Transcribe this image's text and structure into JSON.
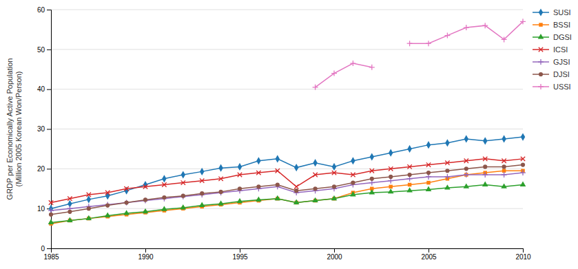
{
  "chart_data": {
    "type": "line",
    "ylabel": "GRDP per Economically Active Population\n(Million 2005 Korean Won/Person)",
    "x": [
      1985,
      1986,
      1987,
      1988,
      1989,
      1990,
      1991,
      1992,
      1993,
      1994,
      1995,
      1996,
      1997,
      1998,
      1999,
      2000,
      2001,
      2002,
      2003,
      2004,
      2005,
      2006,
      2007,
      2008,
      2009,
      2010
    ],
    "xlim": [
      1985,
      2010
    ],
    "xticks": [
      1985,
      1990,
      1995,
      2000,
      2005,
      2010
    ],
    "ylim": [
      0,
      60
    ],
    "yticks": [
      0,
      10,
      20,
      30,
      40,
      50,
      60
    ],
    "grid": true,
    "legend": "right",
    "series": [
      {
        "name": "SUSI",
        "marker": "diamond",
        "values": [
          10.0,
          11.2,
          12.3,
          13.2,
          14.5,
          16.0,
          17.5,
          18.5,
          19.3,
          20.2,
          20.5,
          22.0,
          22.5,
          20.3,
          21.5,
          20.5,
          22.0,
          23.0,
          24.0,
          25.0,
          26.0,
          26.5,
          27.5,
          27.0,
          27.5,
          28.0
        ]
      },
      {
        "name": "BSSI",
        "marker": "square",
        "values": [
          6.2,
          7.0,
          7.5,
          8.0,
          8.5,
          9.0,
          9.5,
          10.0,
          10.5,
          11.0,
          11.5,
          12.0,
          12.5,
          11.5,
          12.0,
          12.5,
          14.0,
          15.0,
          15.5,
          16.0,
          16.5,
          17.5,
          18.5,
          19.0,
          19.5,
          19.5
        ]
      },
      {
        "name": "DGSI",
        "marker": "triangle",
        "values": [
          6.5,
          7.0,
          7.5,
          8.2,
          8.8,
          9.2,
          9.8,
          10.2,
          10.8,
          11.2,
          11.8,
          12.2,
          12.5,
          11.5,
          12.0,
          12.5,
          13.5,
          14.0,
          14.2,
          14.5,
          14.8,
          15.2,
          15.5,
          16.0,
          15.5,
          16.0
        ]
      },
      {
        "name": "ICSI",
        "marker": "x",
        "values": [
          11.5,
          12.5,
          13.5,
          14.0,
          15.0,
          15.5,
          16.0,
          16.5,
          17.0,
          17.5,
          18.5,
          19.0,
          19.5,
          15.5,
          18.5,
          19.0,
          18.5,
          19.5,
          20.0,
          20.5,
          21.0,
          21.5,
          22.0,
          22.5,
          22.0,
          22.5
        ]
      },
      {
        "name": "GJSI",
        "marker": "plus",
        "values": [
          9.5,
          10.0,
          10.5,
          11.0,
          11.5,
          12.0,
          12.5,
          13.0,
          13.5,
          14.0,
          14.5,
          15.0,
          15.5,
          14.0,
          14.5,
          15.0,
          16.0,
          16.5,
          17.0,
          17.5,
          18.0,
          18.0,
          18.5,
          18.5,
          18.5,
          19.0
        ]
      },
      {
        "name": "DJSI",
        "marker": "circle",
        "values": [
          8.5,
          9.2,
          10.0,
          10.8,
          11.5,
          12.2,
          12.8,
          13.2,
          13.8,
          14.2,
          15.0,
          15.5,
          16.0,
          14.5,
          15.0,
          15.5,
          16.5,
          17.5,
          18.0,
          18.5,
          19.0,
          19.5,
          20.0,
          20.5,
          20.5,
          21.0
        ]
      },
      {
        "name": "USSI",
        "marker": "plus",
        "values": [
          null,
          null,
          null,
          null,
          null,
          null,
          null,
          null,
          null,
          null,
          null,
          null,
          null,
          null,
          40.5,
          44.0,
          46.5,
          45.5,
          null,
          51.5,
          51.5,
          53.5,
          55.5,
          56.0,
          52.5,
          57.0
        ]
      }
    ]
  }
}
